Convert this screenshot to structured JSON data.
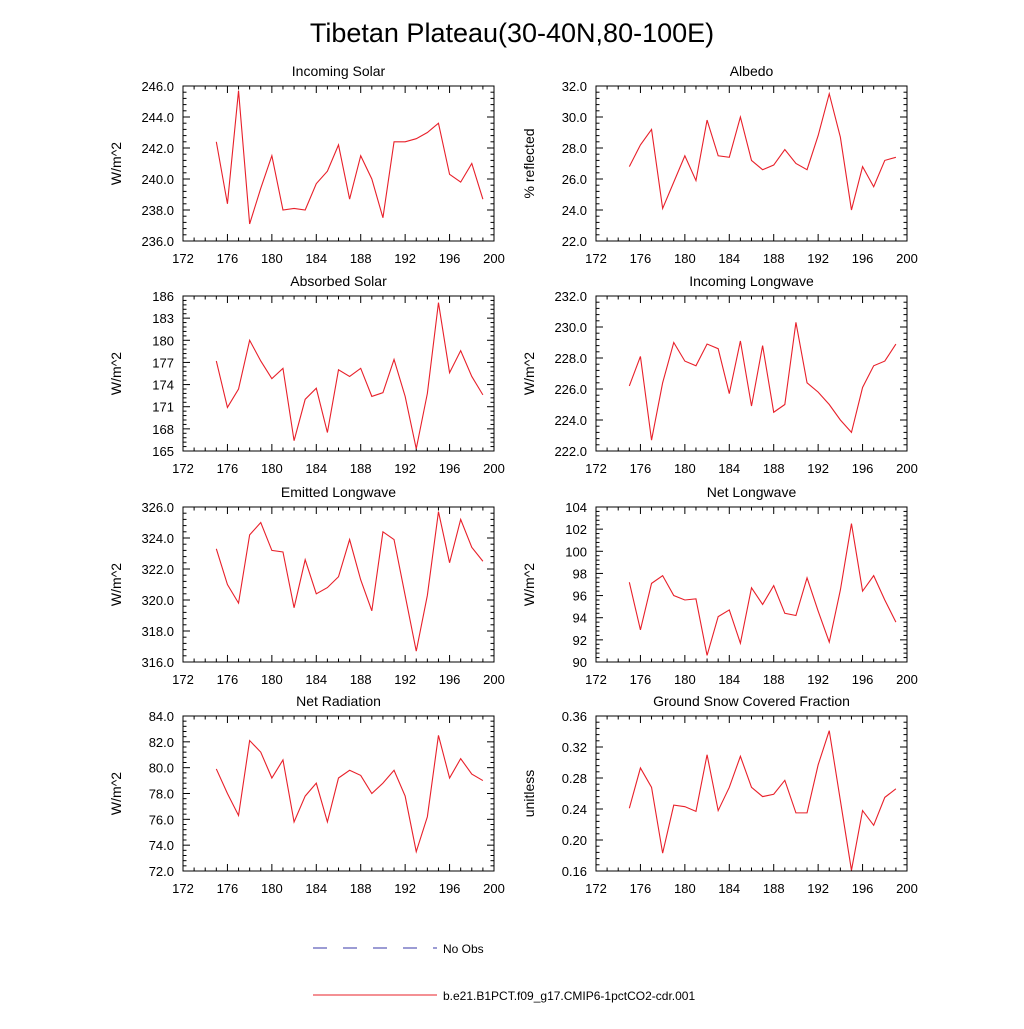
{
  "figure_title": "Tibetan Plateau(30-40N,80-100E)",
  "legend": {
    "obs_label": "No Obs",
    "obs_color": "#3a3aa8",
    "model_label": "b.e21.B1PCT.f09_g17.CMIP6-1pctCO2-cdr.001",
    "model_color": "#e8202a"
  },
  "chart_data": [
    {
      "type": "line",
      "title": "Incoming Solar",
      "ylabel": "W/m^2",
      "xlim": [
        172,
        200
      ],
      "xticks": [
        "172",
        "176",
        "180",
        "184",
        "188",
        "192",
        "196",
        "200"
      ],
      "ylim": [
        236,
        246
      ],
      "yticks": [
        "236.0",
        "238.0",
        "240.0",
        "242.0",
        "244.0",
        "246.0"
      ],
      "x": [
        175,
        176,
        177,
        178,
        179,
        180,
        181,
        182,
        183,
        184,
        185,
        186,
        187,
        188,
        189,
        190,
        191,
        192,
        193,
        194,
        195,
        196,
        197,
        198,
        199
      ],
      "values": [
        242.4,
        238.4,
        245.7,
        237.1,
        239.4,
        241.5,
        238.0,
        238.1,
        238.0,
        239.7,
        240.5,
        242.2,
        238.7,
        241.5,
        240.0,
        237.5,
        242.4,
        242.4,
        242.6,
        243.0,
        243.6,
        240.3,
        239.8,
        241.0,
        238.7
      ]
    },
    {
      "type": "line",
      "title": "Albedo",
      "ylabel": "% reflected",
      "xlim": [
        172,
        200
      ],
      "xticks": [
        "172",
        "176",
        "180",
        "184",
        "188",
        "192",
        "196",
        "200"
      ],
      "ylim": [
        22,
        32
      ],
      "yticks": [
        "22.0",
        "24.0",
        "26.0",
        "28.0",
        "30.0",
        "32.0"
      ],
      "x": [
        175,
        176,
        177,
        178,
        179,
        180,
        181,
        182,
        183,
        184,
        185,
        186,
        187,
        188,
        189,
        190,
        191,
        192,
        193,
        194,
        195,
        196,
        197,
        198,
        199
      ],
      "values": [
        26.8,
        28.2,
        29.2,
        24.1,
        25.8,
        27.5,
        25.9,
        29.8,
        27.5,
        27.4,
        30.0,
        27.2,
        26.6,
        26.9,
        27.9,
        27.0,
        26.6,
        28.8,
        31.5,
        28.7,
        24.0,
        26.8,
        25.5,
        27.2,
        27.4
      ]
    },
    {
      "type": "line",
      "title": "Absorbed Solar",
      "ylabel": "W/m^2",
      "xlim": [
        172,
        200
      ],
      "xticks": [
        "172",
        "176",
        "180",
        "184",
        "188",
        "192",
        "196",
        "200"
      ],
      "ylim": [
        165,
        186
      ],
      "yticks": [
        "165",
        "168",
        "171",
        "174",
        "177",
        "180",
        "183",
        "186"
      ],
      "x": [
        175,
        176,
        177,
        178,
        179,
        180,
        181,
        182,
        183,
        184,
        185,
        186,
        187,
        188,
        189,
        190,
        191,
        192,
        193,
        194,
        195,
        196,
        197,
        198,
        199
      ],
      "values": [
        177.2,
        170.9,
        173.4,
        180.0,
        177.2,
        174.8,
        176.2,
        166.4,
        172.0,
        173.5,
        167.5,
        176.0,
        175.1,
        176.2,
        172.4,
        172.9,
        177.4,
        172.4,
        165.3,
        172.8,
        185.1,
        175.6,
        178.6,
        175.1,
        172.6
      ]
    },
    {
      "type": "line",
      "title": "Incoming Longwave",
      "ylabel": "W/m^2",
      "xlim": [
        172,
        200
      ],
      "xticks": [
        "172",
        "176",
        "180",
        "184",
        "188",
        "192",
        "196",
        "200"
      ],
      "ylim": [
        222,
        232
      ],
      "yticks": [
        "222.0",
        "224.0",
        "226.0",
        "228.0",
        "230.0",
        "232.0"
      ],
      "x": [
        175,
        176,
        177,
        178,
        179,
        180,
        181,
        182,
        183,
        184,
        185,
        186,
        187,
        188,
        189,
        190,
        191,
        192,
        193,
        194,
        195,
        196,
        197,
        198,
        199
      ],
      "values": [
        226.2,
        228.1,
        222.7,
        226.4,
        229.0,
        227.8,
        227.5,
        228.9,
        228.6,
        225.7,
        229.1,
        224.9,
        228.8,
        224.5,
        225.0,
        230.3,
        226.4,
        225.8,
        225.0,
        224.0,
        223.2,
        226.1,
        227.5,
        227.8,
        228.9
      ]
    },
    {
      "type": "line",
      "title": "Emitted Longwave",
      "ylabel": "W/m^2",
      "xlim": [
        172,
        200
      ],
      "xticks": [
        "172",
        "176",
        "180",
        "184",
        "188",
        "192",
        "196",
        "200"
      ],
      "ylim": [
        316,
        326
      ],
      "yticks": [
        "316.0",
        "318.0",
        "320.0",
        "322.0",
        "324.0",
        "326.0"
      ],
      "x": [
        175,
        176,
        177,
        178,
        179,
        180,
        181,
        182,
        183,
        184,
        185,
        186,
        187,
        188,
        189,
        190,
        191,
        192,
        193,
        194,
        195,
        196,
        197,
        198,
        199
      ],
      "values": [
        323.3,
        321.0,
        319.8,
        324.2,
        325.0,
        323.2,
        323.1,
        319.5,
        322.6,
        320.4,
        320.8,
        321.5,
        323.9,
        321.3,
        319.3,
        324.4,
        323.9,
        320.3,
        316.7,
        320.3,
        325.7,
        322.4,
        325.2,
        323.4,
        322.5
      ]
    },
    {
      "type": "line",
      "title": "Net Longwave",
      "ylabel": "W/m^2",
      "xlim": [
        172,
        200
      ],
      "xticks": [
        "172",
        "176",
        "180",
        "184",
        "188",
        "192",
        "196",
        "200"
      ],
      "ylim": [
        90,
        104
      ],
      "yticks": [
        "90",
        "92",
        "94",
        "96",
        "98",
        "100",
        "102",
        "104"
      ],
      "x": [
        175,
        176,
        177,
        178,
        179,
        180,
        181,
        182,
        183,
        184,
        185,
        186,
        187,
        188,
        189,
        190,
        191,
        192,
        193,
        194,
        195,
        196,
        197,
        198,
        199
      ],
      "values": [
        97.2,
        92.9,
        97.1,
        97.8,
        96.0,
        95.6,
        95.7,
        90.6,
        94.1,
        94.7,
        91.7,
        96.7,
        95.2,
        96.9,
        94.4,
        94.2,
        97.6,
        94.6,
        91.8,
        96.5,
        102.5,
        96.4,
        97.8,
        95.6,
        93.6
      ]
    },
    {
      "type": "line",
      "title": "Net Radiation",
      "ylabel": "W/m^2",
      "xlim": [
        172,
        200
      ],
      "xticks": [
        "172",
        "176",
        "180",
        "184",
        "188",
        "192",
        "196",
        "200"
      ],
      "ylim": [
        72,
        84
      ],
      "yticks": [
        "72.0",
        "74.0",
        "76.0",
        "78.0",
        "80.0",
        "82.0",
        "84.0"
      ],
      "x": [
        175,
        176,
        177,
        178,
        179,
        180,
        181,
        182,
        183,
        184,
        185,
        186,
        187,
        188,
        189,
        190,
        191,
        192,
        193,
        194,
        195,
        196,
        197,
        198,
        199
      ],
      "values": [
        79.9,
        78.0,
        76.3,
        82.1,
        81.2,
        79.2,
        80.6,
        75.8,
        77.8,
        78.8,
        75.8,
        79.2,
        79.8,
        79.4,
        78.0,
        78.8,
        79.8,
        77.8,
        73.5,
        76.2,
        82.5,
        79.2,
        80.7,
        79.5,
        79.0
      ]
    },
    {
      "type": "line",
      "title": "Ground Snow Covered Fraction",
      "ylabel": "unitless",
      "xlim": [
        172,
        200
      ],
      "xticks": [
        "172",
        "176",
        "180",
        "184",
        "188",
        "192",
        "196",
        "200"
      ],
      "ylim": [
        0.16,
        0.36
      ],
      "yticks": [
        "0.16",
        "0.20",
        "0.24",
        "0.28",
        "0.32",
        "0.36"
      ],
      "x": [
        175,
        176,
        177,
        178,
        179,
        180,
        181,
        182,
        183,
        184,
        185,
        186,
        187,
        188,
        189,
        190,
        191,
        192,
        193,
        194,
        195,
        196,
        197,
        198,
        199
      ],
      "values": [
        0.241,
        0.293,
        0.268,
        0.183,
        0.245,
        0.243,
        0.237,
        0.31,
        0.238,
        0.268,
        0.308,
        0.268,
        0.256,
        0.259,
        0.277,
        0.235,
        0.235,
        0.297,
        0.341,
        0.251,
        0.161,
        0.238,
        0.219,
        0.255,
        0.266
      ]
    }
  ]
}
